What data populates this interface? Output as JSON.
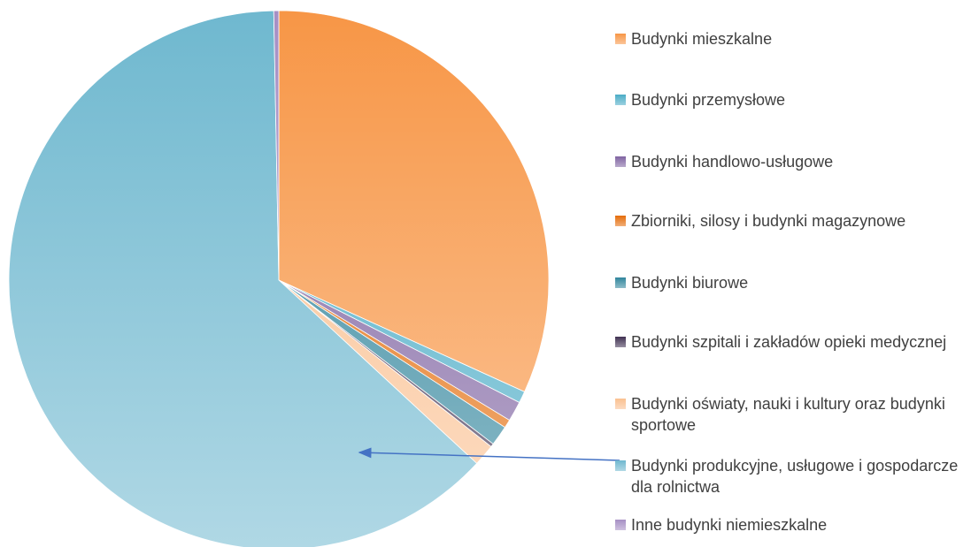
{
  "chart_data": {
    "type": "pie",
    "categories": [
      "Budynki mieszkalne",
      "Budynki przemysłowe",
      "Budynki handlowo-usługowe",
      "Zbiorniki, silosy i budynki magazynowe",
      "Budynki biurowe",
      "Budynki szpitali i zakładów opieki medycznej",
      "Budynki oświaty, nauki i kultury oraz budynki sportowe",
      "Budynki produkcyjne, usługowe i gospodarcze dla rolnictwa",
      "Inne budynki niemieszkalne"
    ],
    "values": [
      31.8,
      0.7,
      1.2,
      0.5,
      1.2,
      0.2,
      1.3,
      62.8,
      0.3
    ],
    "colors": [
      "#f79646",
      "#4bacc6",
      "#8064a2",
      "#e46c0a",
      "#31859c",
      "#403152",
      "#fac090",
      "#6fb8cf",
      "#a68fc4"
    ],
    "legend": "right"
  }
}
